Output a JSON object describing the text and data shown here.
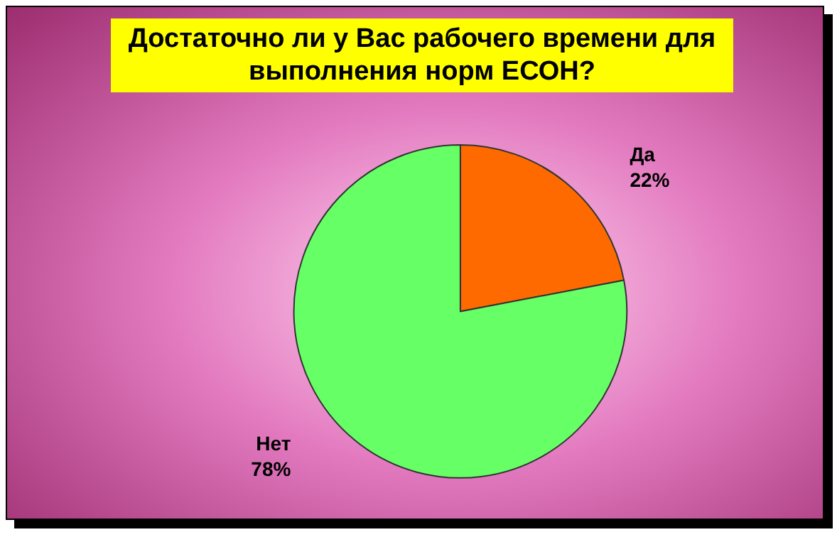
{
  "chart_data": {
    "type": "pie",
    "title": "Достаточно ли у Вас рабочего времени для выполнения норм ЕСОН?",
    "categories": [
      "Да",
      "Нет"
    ],
    "values": [
      22,
      78
    ],
    "value_labels": [
      "22%",
      "78%"
    ],
    "colors": [
      "#ff6a00",
      "#66ff66"
    ],
    "legend": false
  }
}
